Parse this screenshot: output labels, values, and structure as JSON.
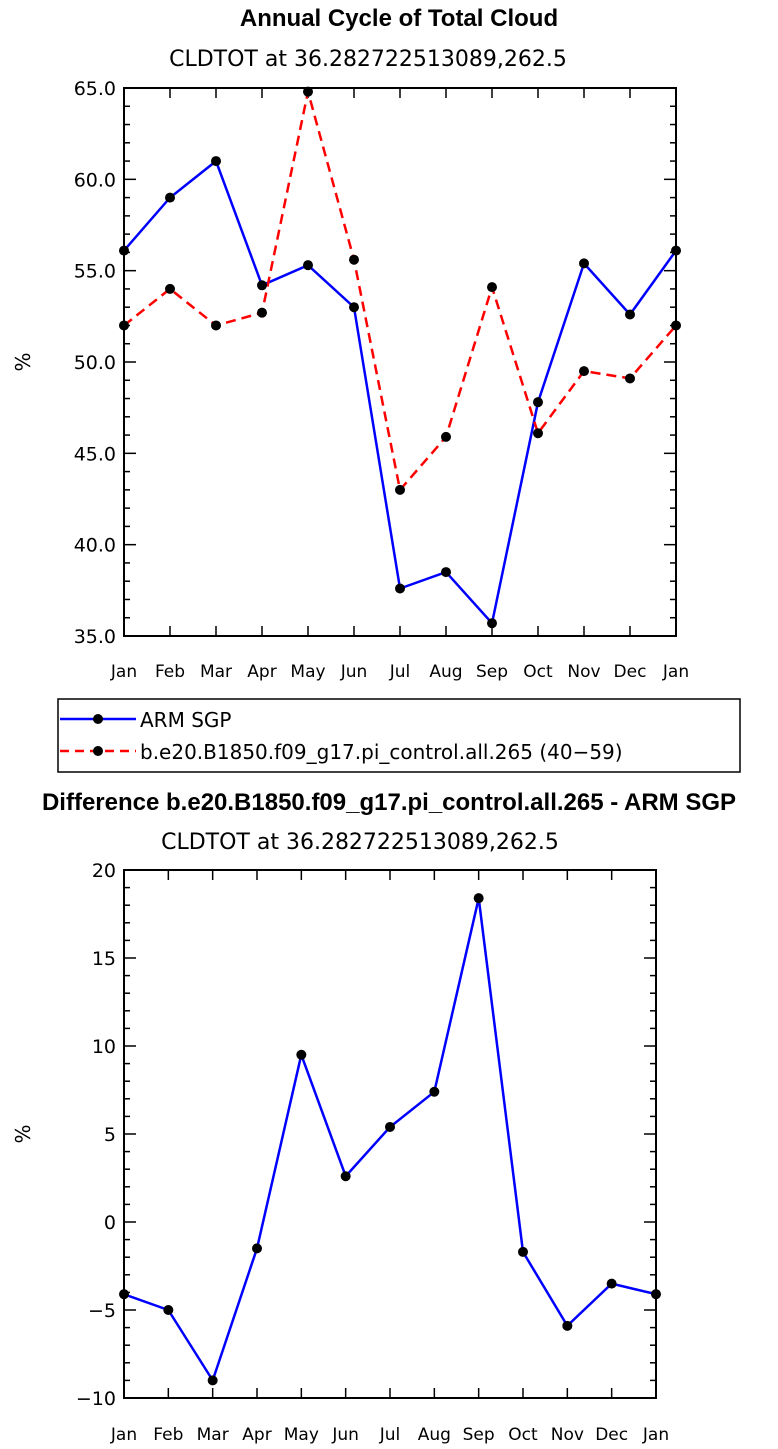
{
  "chart_data": [
    {
      "type": "line",
      "title": "Annual Cycle of Total Cloud",
      "subtitle": "CLDTOT at 36.282722513089,262.5",
      "xlabel": "",
      "ylabel": "%",
      "categories": [
        "Jan",
        "Feb",
        "Mar",
        "Apr",
        "May",
        "Jun",
        "Jul",
        "Aug",
        "Sep",
        "Oct",
        "Nov",
        "Dec",
        "Jan"
      ],
      "ylim": [
        35.0,
        65.0
      ],
      "yticks": [
        "35.0",
        "40.0",
        "45.0",
        "50.0",
        "55.0",
        "60.0",
        "65.0"
      ],
      "ytick_values": [
        35,
        40,
        45,
        50,
        55,
        60,
        65
      ],
      "series": [
        {
          "name": "ARM SGP",
          "color": "#0000ff",
          "dash": "solid",
          "values": [
            56.1,
            59.0,
            61.0,
            54.2,
            55.3,
            53.0,
            37.6,
            38.5,
            35.7,
            47.8,
            55.4,
            52.6,
            56.1
          ]
        },
        {
          "name": "b.e20.B1850.f09_g17.pi_control.all.265 (40-59)",
          "color": "#ff0000",
          "dash": "dashed",
          "values": [
            52.0,
            54.0,
            52.0,
            52.7,
            64.8,
            55.6,
            43.0,
            45.9,
            54.1,
            46.1,
            49.5,
            49.1,
            52.0
          ]
        }
      ],
      "legend": [
        {
          "label": "ARM SGP",
          "color": "#0000ff"
        },
        {
          "label": "b.e20.B1850.f09_g17.pi_control.all.265 (40−59)",
          "color": "#ff0000"
        }
      ]
    },
    {
      "type": "line",
      "title": "Difference b.e20.B1850.f09_g17.pi_control.all.265 - ARM SGP",
      "subtitle": "CLDTOT at 36.282722513089,262.5",
      "xlabel": "",
      "ylabel": "%",
      "categories": [
        "Jan",
        "Feb",
        "Mar",
        "Apr",
        "May",
        "Jun",
        "Jul",
        "Aug",
        "Sep",
        "Oct",
        "Nov",
        "Dec",
        "Jan"
      ],
      "ylim": [
        -10,
        20
      ],
      "yticks": [
        "−10",
        "−5",
        "0",
        "5",
        "10",
        "15",
        "20"
      ],
      "ytick_values": [
        -10,
        -5,
        0,
        5,
        10,
        15,
        20
      ],
      "series": [
        {
          "name": "Difference",
          "color": "#0000ff",
          "dash": "solid",
          "values": [
            -4.1,
            -5.0,
            -9.0,
            -1.5,
            9.5,
            2.6,
            5.4,
            7.4,
            18.4,
            -1.7,
            -5.9,
            -3.5,
            -4.1
          ]
        }
      ]
    }
  ]
}
